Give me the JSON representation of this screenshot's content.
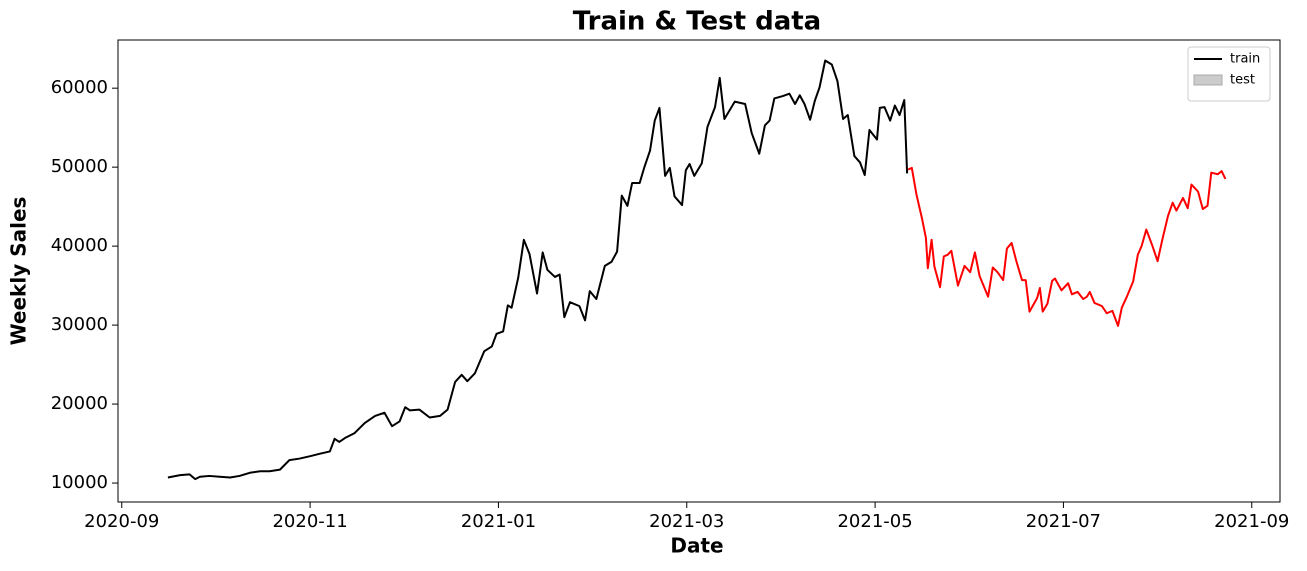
{
  "chart_data": {
    "type": "line",
    "title": "Train & Test data",
    "x_label": "Date",
    "y_label": "Weekly Sales",
    "series": [
      {
        "name": "train",
        "color": "#000000",
        "legend_marker": "line",
        "legend_color": "#000000",
        "x": [
          0.49,
          0.62,
          0.72,
          0.78,
          0.83,
          0.93,
          1.04,
          1.15,
          1.25,
          1.36,
          1.47,
          1.57,
          1.68,
          1.73,
          1.78,
          1.89,
          2.0,
          2.1,
          2.21,
          2.26,
          2.31,
          2.37,
          2.47,
          2.58,
          2.69,
          2.79,
          2.87,
          2.95,
          3.01,
          3.06,
          3.16,
          3.27,
          3.38,
          3.46,
          3.54,
          3.61,
          3.67,
          3.75,
          3.85,
          3.93,
          3.98,
          4.05,
          4.1,
          4.14,
          4.21,
          4.27,
          4.33,
          4.41,
          4.47,
          4.52,
          4.6,
          4.65,
          4.7,
          4.76,
          4.86,
          4.92,
          4.97,
          5.04,
          5.13,
          5.2,
          5.26,
          5.31,
          5.37,
          5.42,
          5.5,
          5.55,
          5.61,
          5.66,
          5.71,
          5.77,
          5.82,
          5.87,
          5.95,
          5.99,
          6.03,
          6.08,
          6.16,
          6.22,
          6.3,
          6.35,
          6.4,
          6.51,
          6.62,
          6.69,
          6.77,
          6.83,
          6.88,
          6.93,
          7.02,
          7.09,
          7.15,
          7.2,
          7.25,
          7.31,
          7.36,
          7.41,
          7.47,
          7.54,
          7.6,
          7.66,
          7.71,
          7.78,
          7.84,
          7.89,
          7.94,
          8.02,
          8.05,
          8.1,
          8.16,
          8.21,
          8.26,
          8.31,
          8.34
        ],
        "values": [
          10700,
          11000,
          11100,
          10500,
          10800,
          10900,
          10800,
          10700,
          10900,
          11300,
          11500,
          11500,
          11700,
          12300,
          12900,
          13100,
          13400,
          13700,
          14000,
          15600,
          15200,
          15700,
          16300,
          17600,
          18500,
          18900,
          17200,
          17800,
          19600,
          19200,
          19300,
          18300,
          18500,
          19300,
          22800,
          23700,
          22900,
          23900,
          26700,
          27300,
          28900,
          29200,
          32500,
          32200,
          36000,
          40800,
          39000,
          34000,
          39200,
          37000,
          36100,
          36400,
          31000,
          32900,
          32400,
          30600,
          34300,
          33300,
          37500,
          38000,
          39300,
          46400,
          45100,
          48000,
          48000,
          50000,
          52100,
          55900,
          57500,
          48900,
          49900,
          46300,
          45200,
          49600,
          50400,
          48900,
          50500,
          55100,
          57600,
          61300,
          56100,
          58300,
          58000,
          54300,
          51700,
          55300,
          55900,
          58700,
          59000,
          59300,
          58000,
          59100,
          58000,
          56000,
          58400,
          60100,
          63500,
          63000,
          60900,
          56100,
          56600,
          51400,
          50600,
          49000,
          54700,
          53500,
          57500,
          57600,
          55900,
          57800,
          56600,
          58500,
          49200
        ]
      },
      {
        "name": "test",
        "color": "#ff0000",
        "legend_marker": "patch",
        "legend_color": "#cccccc",
        "x": [
          8.35,
          8.39,
          8.44,
          8.5,
          8.54,
          8.56,
          8.6,
          8.63,
          8.69,
          8.73,
          8.77,
          8.81,
          8.88,
          8.95,
          9.01,
          9.06,
          9.11,
          9.2,
          9.25,
          9.3,
          9.36,
          9.4,
          9.45,
          9.5,
          9.56,
          9.6,
          9.64,
          9.72,
          9.75,
          9.78,
          9.83,
          9.88,
          9.91,
          9.98,
          10.05,
          10.09,
          10.15,
          10.21,
          10.25,
          10.28,
          10.33,
          10.41,
          10.46,
          10.52,
          10.58,
          10.62,
          10.67,
          10.74,
          10.79,
          10.83,
          10.88,
          10.94,
          11.0,
          11.05,
          11.11,
          11.16,
          11.2,
          11.27,
          11.32,
          11.36,
          11.43,
          11.48,
          11.53,
          11.57,
          11.64,
          11.68,
          11.72
        ],
        "values": [
          49700,
          49900,
          46500,
          43400,
          41000,
          37200,
          40800,
          37400,
          34800,
          38700,
          38900,
          39400,
          35000,
          37500,
          36700,
          39200,
          36200,
          33600,
          37300,
          36700,
          35700,
          39700,
          40400,
          38100,
          35700,
          35700,
          31700,
          33400,
          34700,
          31700,
          32700,
          35600,
          35900,
          34400,
          35300,
          33900,
          34200,
          33300,
          33600,
          34200,
          32800,
          32400,
          31500,
          31800,
          29900,
          32200,
          33500,
          35500,
          38900,
          40000,
          42100,
          40200,
          38100,
          40800,
          43800,
          45500,
          44500,
          46100,
          44800,
          47800,
          46900,
          44700,
          45100,
          49300,
          49100,
          49500,
          48500
        ]
      }
    ],
    "xlim": [
      -0.04,
      12.3
    ],
    "xticks": [
      {
        "value": 0,
        "label": "2020-09"
      },
      {
        "value": 2,
        "label": "2020-11"
      },
      {
        "value": 4,
        "label": "2021-01"
      },
      {
        "value": 6,
        "label": "2021-03"
      },
      {
        "value": 8,
        "label": "2021-05"
      },
      {
        "value": 10,
        "label": "2021-07"
      },
      {
        "value": 12,
        "label": "2021-09"
      }
    ],
    "ylim": [
      7600,
      66100
    ],
    "yticks": [
      10000,
      20000,
      30000,
      40000,
      50000,
      60000
    ],
    "grid": false,
    "legend_position": "upper right"
  }
}
